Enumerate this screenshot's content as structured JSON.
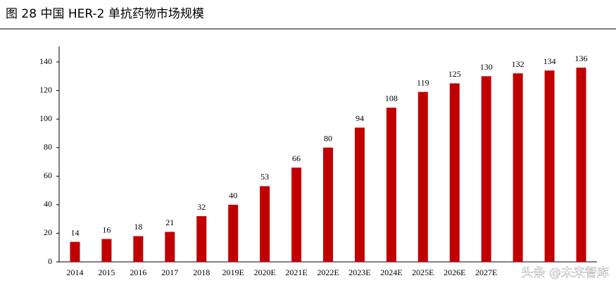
{
  "chart_data": {
    "type": "bar",
    "title": "图 28 中国 HER-2 单抗药物市场规模",
    "categories": [
      "2014",
      "2015",
      "2016",
      "2017",
      "2018",
      "2019E",
      "2020E",
      "2021E",
      "2022E",
      "2023E",
      "2024E",
      "2025E",
      "2026E",
      "2027E",
      null,
      null,
      null
    ],
    "values": [
      14,
      16,
      18,
      21,
      32,
      40,
      53,
      66,
      80,
      94,
      108,
      119,
      125,
      130,
      132,
      134,
      136
    ],
    "color": "#c00000",
    "ylim": [
      0,
      150
    ],
    "yticks": [
      0,
      20,
      40,
      60,
      80,
      100,
      120,
      140
    ],
    "watermark": "头条 @未来智库"
  }
}
